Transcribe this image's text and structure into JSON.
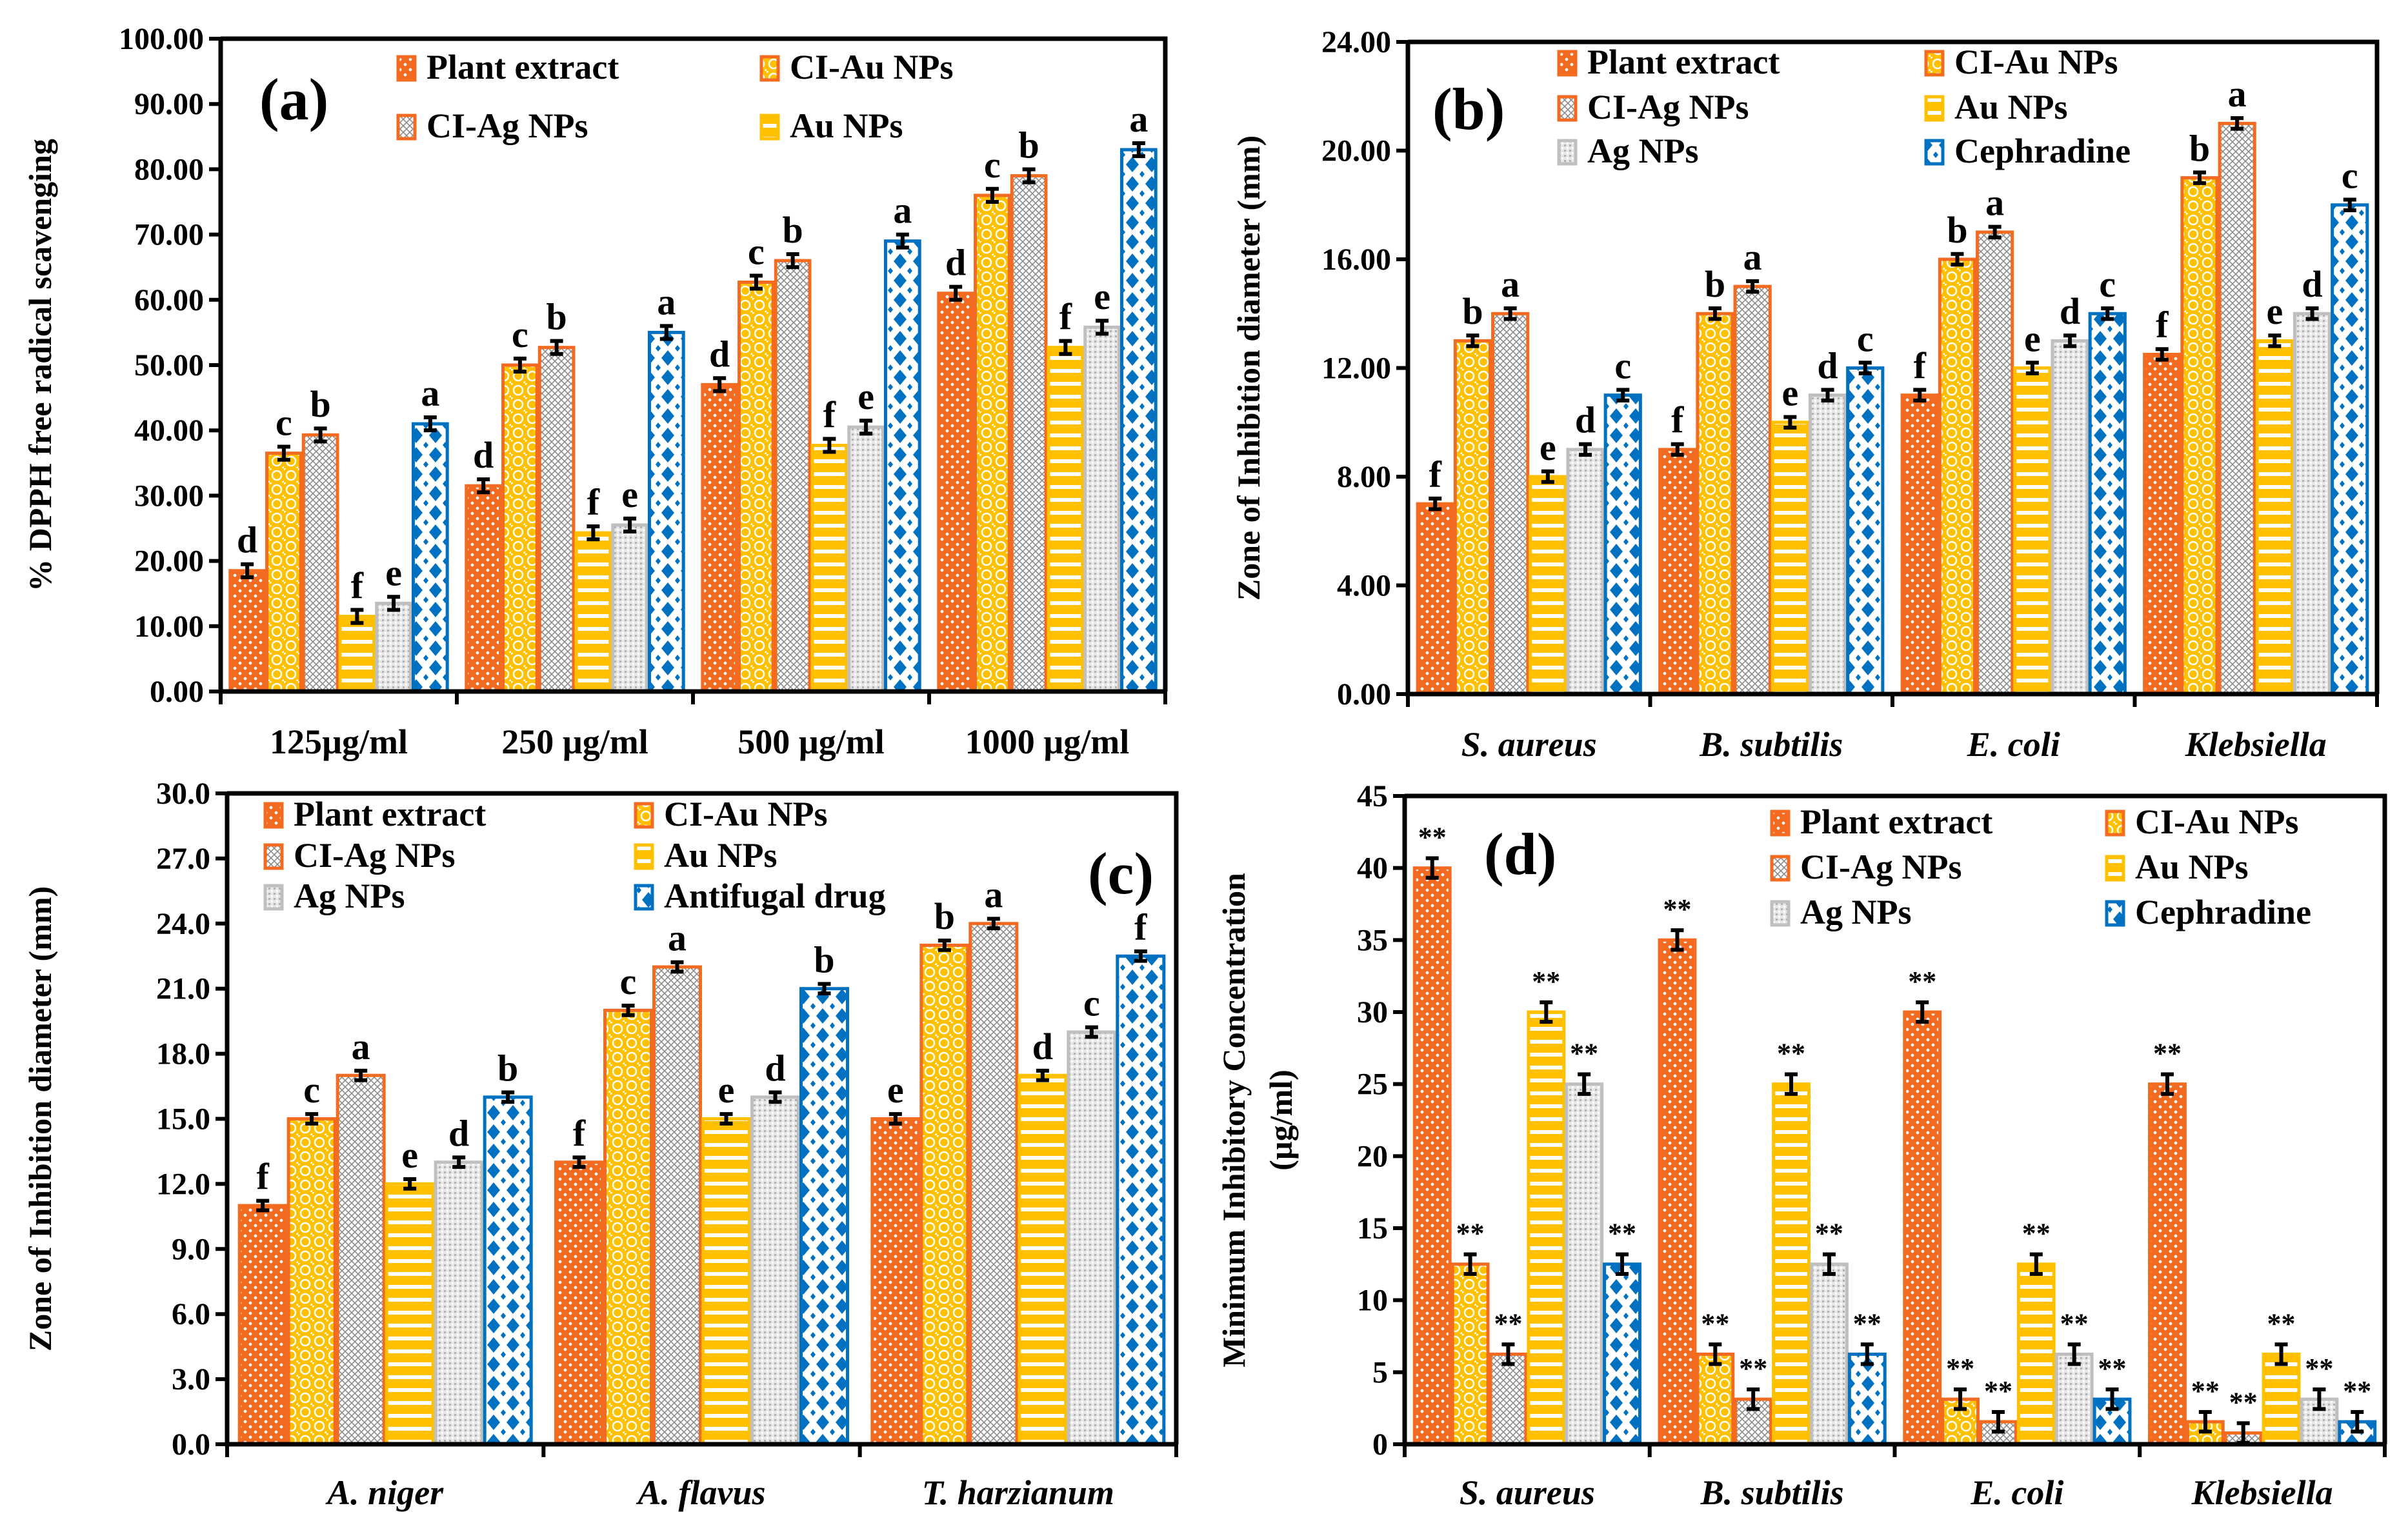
{
  "colors": {
    "plant": "#F26B21",
    "ciau": "#FFC000",
    "ciag_border": "#F26B21",
    "au": "#FFC000",
    "ag": "#BFBFBF",
    "blue": "#0070C0"
  },
  "chart_data": [
    {
      "type": "bar",
      "panel_label": "(a)",
      "ylabel": "% DPPH free radical scavenging",
      "ylim": [
        0,
        100
      ],
      "yticks": [
        "0.00",
        "10.00",
        "20.00",
        "30.00",
        "40.00",
        "50.00",
        "60.00",
        "70.00",
        "80.00",
        "90.00",
        "100.00"
      ],
      "categories": [
        "125µg/ml",
        "250 µg/ml",
        "500 µg/ml",
        "1000 µg/ml"
      ],
      "italic_categories": false,
      "legend": [
        "Plant extract",
        "CI-Au NPs",
        "CI-Ag NPs",
        "Au NPs"
      ],
      "series": [
        {
          "name": "Plant extract",
          "pattern": "plant",
          "values": [
            18.5,
            31.5,
            47,
            61
          ],
          "labels": [
            "d",
            "d",
            "d",
            "d"
          ]
        },
        {
          "name": "CI-Au NPs",
          "pattern": "ciau",
          "values": [
            36.5,
            50,
            62.7,
            76
          ],
          "labels": [
            "c",
            "c",
            "c",
            "c"
          ]
        },
        {
          "name": "CI-Ag NPs",
          "pattern": "ciag",
          "values": [
            39.3,
            52.7,
            66,
            79
          ],
          "labels": [
            "b",
            "b",
            "b",
            "b"
          ]
        },
        {
          "name": "Au NPs",
          "pattern": "au",
          "values": [
            11.5,
            24.3,
            37.7,
            52.7
          ],
          "labels": [
            "f",
            "f",
            "f",
            "f"
          ]
        },
        {
          "pattern": "ag",
          "values": [
            13.5,
            25.5,
            40.5,
            55.8
          ],
          "labels": [
            "e",
            "e",
            "e",
            "e"
          ]
        },
        {
          "pattern": "blue",
          "values": [
            41,
            55,
            69,
            83
          ],
          "labels": [
            "a",
            "a",
            "a",
            "a"
          ]
        }
      ],
      "error": 0.6
    },
    {
      "type": "bar",
      "panel_label": "(b)",
      "ylabel": "Zone of Inhibition diameter (mm)",
      "ylim": [
        0,
        24
      ],
      "yticks": [
        "0.00",
        "4.00",
        "8.00",
        "12.00",
        "16.00",
        "20.00",
        "24.00"
      ],
      "categories": [
        "S. aureus",
        "B. subtilis",
        "E. coli",
        "Klebsiella"
      ],
      "italic_categories": true,
      "legend": [
        "Plant extract",
        "CI-Au NPs",
        "CI-Ag NPs",
        "Au NPs",
        "Ag NPs",
        "Cephradine"
      ],
      "series": [
        {
          "name": "Plant extract",
          "pattern": "plant",
          "values": [
            7,
            9,
            11,
            12.5
          ],
          "labels": [
            "f",
            "f",
            "f",
            "f"
          ]
        },
        {
          "name": "CI-Au NPs",
          "pattern": "ciau",
          "values": [
            13,
            14,
            16,
            19
          ],
          "labels": [
            "b",
            "b",
            "b",
            "b"
          ]
        },
        {
          "name": "CI-Ag NPs",
          "pattern": "ciag",
          "values": [
            14,
            15,
            17,
            21
          ],
          "labels": [
            "a",
            "a",
            "a",
            "a"
          ]
        },
        {
          "name": "Au NPs",
          "pattern": "au",
          "values": [
            8,
            10,
            12,
            13
          ],
          "labels": [
            "e",
            "e",
            "e",
            "e"
          ]
        },
        {
          "name": "Ag NPs",
          "pattern": "ag",
          "values": [
            9,
            11,
            13,
            14
          ],
          "labels": [
            "d",
            "d",
            "d",
            "d"
          ]
        },
        {
          "name": "Cephradine",
          "pattern": "blue",
          "values": [
            11,
            12,
            14,
            18
          ],
          "labels": [
            "c",
            "c",
            "c",
            "c"
          ]
        }
      ],
      "error": 0.1
    },
    {
      "type": "bar",
      "panel_label": "(c)",
      "ylabel": "Zone of Inhibition diameter (mm)",
      "ylim": [
        0,
        30
      ],
      "yticks": [
        "0.0",
        "3.0",
        "6.0",
        "9.0",
        "12.0",
        "15.0",
        "18.0",
        "21.0",
        "24.0",
        "27.0",
        "30.0"
      ],
      "categories": [
        "A. niger",
        "A. flavus",
        "T. harzianum"
      ],
      "italic_categories": true,
      "legend": [
        "Plant extract",
        "CI-Au NPs",
        "CI-Ag NPs",
        "Au NPs",
        "Ag NPs",
        "Antifugal drug"
      ],
      "series": [
        {
          "name": "Plant extract",
          "pattern": "plant",
          "values": [
            11,
            13,
            15
          ],
          "labels": [
            "f",
            "f",
            "e"
          ]
        },
        {
          "name": "CI-Au NPs",
          "pattern": "ciau",
          "values": [
            15,
            20,
            23
          ],
          "labels": [
            "c",
            "c",
            "b"
          ]
        },
        {
          "name": "CI-Ag NPs",
          "pattern": "ciag",
          "values": [
            17,
            22,
            24
          ],
          "labels": [
            "a",
            "a",
            "a"
          ]
        },
        {
          "name": "Au NPs",
          "pattern": "au",
          "values": [
            12,
            15,
            17
          ],
          "labels": [
            "e",
            "e",
            "d"
          ]
        },
        {
          "name": "Ag NPs",
          "pattern": "ag",
          "values": [
            13,
            16,
            19
          ],
          "labels": [
            "d",
            "d",
            "c"
          ]
        },
        {
          "name": "Antifugal drug",
          "pattern": "blue",
          "values": [
            16,
            21,
            22.5
          ],
          "labels": [
            "b",
            "b",
            "f"
          ]
        }
      ],
      "error": 0.1
    },
    {
      "type": "bar",
      "panel_label": "(d)",
      "ylabel": "Minimum Inhibitory Concentration",
      "ylabel2": "(µg/ml)",
      "ylim": [
        0,
        45
      ],
      "yticks": [
        "0",
        "5",
        "10",
        "15",
        "20",
        "25",
        "30",
        "35",
        "40",
        "45"
      ],
      "categories": [
        "S. aureus",
        "B. subtilis",
        "E. coli",
        "Klebsiella"
      ],
      "italic_categories": true,
      "legend": [
        "Plant extract",
        "CI-Au NPs",
        "CI-Ag NPs",
        "Au NPs",
        "Ag NPs",
        "Cephradine"
      ],
      "series": [
        {
          "name": "Plant extract",
          "pattern": "plant",
          "values": [
            40,
            35,
            30,
            25
          ],
          "labels": [
            "**",
            "**",
            "**",
            "**"
          ]
        },
        {
          "name": "CI-Au NPs",
          "pattern": "ciau",
          "values": [
            12.5,
            6.25,
            3.125,
            1.56
          ],
          "labels": [
            "**",
            "**",
            "**",
            "**"
          ]
        },
        {
          "name": "CI-Ag NPs",
          "pattern": "ciag",
          "values": [
            6.25,
            3.125,
            1.56,
            0.78
          ],
          "labels": [
            "**",
            "**",
            "**",
            "**"
          ]
        },
        {
          "name": "Au NPs",
          "pattern": "au",
          "values": [
            30,
            25,
            12.5,
            6.25
          ],
          "labels": [
            "**",
            "**",
            "**",
            "**"
          ]
        },
        {
          "name": "Ag NPs",
          "pattern": "ag",
          "values": [
            25,
            12.5,
            6.25,
            3.125
          ],
          "labels": [
            "**",
            "**",
            "**",
            "**"
          ]
        },
        {
          "name": "Cephradine",
          "pattern": "blue",
          "values": [
            12.5,
            6.25,
            3.125,
            1.56
          ],
          "labels": [
            "**",
            "**",
            "**",
            "**"
          ]
        }
      ],
      "error": 0.5
    }
  ]
}
